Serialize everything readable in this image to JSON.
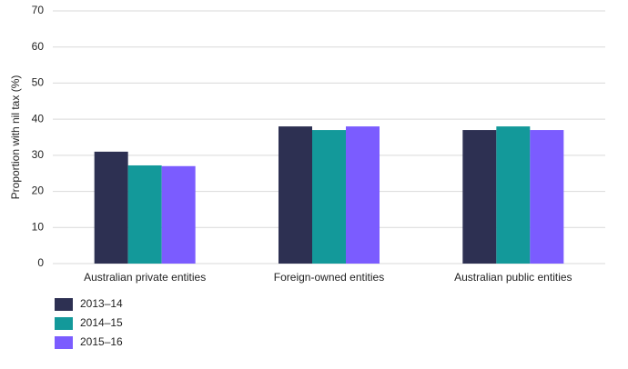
{
  "chart_data": {
    "type": "bar",
    "y_label": "Proportion with nil tax (%)",
    "categories": [
      "Australian private entities",
      "Foreign-owned entities",
      "Australian public entities"
    ],
    "series": [
      {
        "name": "2013–14",
        "color": "#2d3052",
        "values": [
          31,
          38,
          37
        ]
      },
      {
        "name": "2014–15",
        "color": "#13999a",
        "values": [
          27.2,
          37,
          38
        ]
      },
      {
        "name": "2015–16",
        "color": "#7b5cff",
        "values": [
          27,
          38,
          37
        ]
      }
    ],
    "ylim": [
      0,
      70
    ],
    "yticks": [
      0,
      10,
      20,
      30,
      40,
      50,
      60,
      70
    ],
    "grid": true,
    "legend": "bottom-left"
  }
}
